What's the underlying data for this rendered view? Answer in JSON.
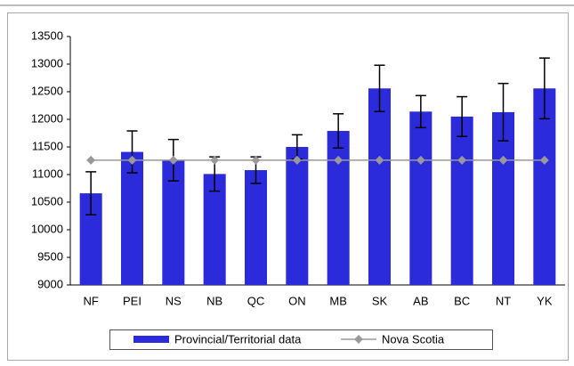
{
  "chart_data": {
    "type": "bar",
    "categories": [
      "NF",
      "PEI",
      "NS",
      "NB",
      "QC",
      "ON",
      "MB",
      "SK",
      "AB",
      "BC",
      "NT",
      "YK"
    ],
    "series": [
      {
        "name": "Provincial/Territorial data",
        "type": "bar",
        "color": "#2b2bdb",
        "values": [
          10660,
          11410,
          11260,
          11010,
          11080,
          11500,
          11790,
          12560,
          12140,
          12050,
          12130,
          12560
        ],
        "errors": [
          390,
          380,
          375,
          310,
          240,
          220,
          310,
          420,
          290,
          360,
          520,
          550
        ]
      },
      {
        "name": "Nova Scotia",
        "type": "line",
        "color": "#999999",
        "values": [
          11260,
          11260,
          11260,
          11260,
          11260,
          11260,
          11260,
          11260,
          11260,
          11260,
          11260,
          11260
        ]
      }
    ],
    "ylim": [
      9000,
      13500
    ],
    "yticks": [
      9000,
      9500,
      10000,
      10500,
      11000,
      11500,
      12000,
      12500,
      13000,
      13500
    ]
  }
}
